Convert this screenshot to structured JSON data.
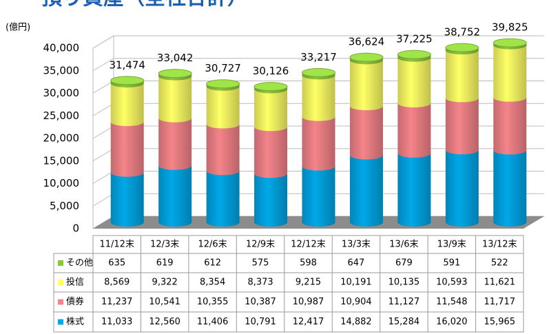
{
  "chart_data": {
    "type": "bar",
    "stacked": true,
    "title": "預り資産（全社合計）",
    "y_axis_label": "(億円)",
    "categories": [
      "11/12末",
      "12/3末",
      "12/6末",
      "12/9末",
      "12/12末",
      "13/3末",
      "13/6末",
      "13/9末",
      "13/12末"
    ],
    "series": [
      {
        "name": "株式",
        "color": "#00a8e8",
        "values": [
          11033,
          12560,
          11406,
          10791,
          12417,
          14882,
          15284,
          16020,
          15965
        ],
        "value_labels": [
          "11,033",
          "12,560",
          "11,406",
          "10,791",
          "12,417",
          "14,882",
          "15,284",
          "16,020",
          "15,965"
        ]
      },
      {
        "name": "債券",
        "color": "#f4848a",
        "values": [
          11237,
          10541,
          10355,
          10387,
          10987,
          10904,
          11127,
          11548,
          11717
        ],
        "value_labels": [
          "11,237",
          "10,541",
          "10,355",
          "10,387",
          "10,987",
          "10,904",
          "11,127",
          "11,548",
          "11,717"
        ]
      },
      {
        "name": "投信",
        "color": "#ffff66",
        "values": [
          8569,
          9322,
          8354,
          8373,
          9215,
          10191,
          10135,
          10593,
          11621
        ],
        "value_labels": [
          "8,569",
          "9,322",
          "8,354",
          "8,373",
          "9,215",
          "10,191",
          "10,135",
          "10,593",
          "11,621"
        ]
      },
      {
        "name": "その他",
        "color": "#8cc63f",
        "values": [
          635,
          619,
          612,
          575,
          598,
          647,
          679,
          591,
          522
        ],
        "value_labels": [
          "635",
          "619",
          "612",
          "575",
          "598",
          "647",
          "679",
          "591",
          "522"
        ]
      }
    ],
    "totals": [
      31474,
      33042,
      30727,
      30126,
      33217,
      36624,
      37225,
      38752,
      39825
    ],
    "total_labels": [
      "31,474",
      "33,042",
      "30,727",
      "30,126",
      "33,217",
      "36,624",
      "37,225",
      "38,752",
      "39,825"
    ],
    "ylim": [
      0,
      40000
    ],
    "yticks": [
      0,
      {
        "value": 5000,
        "label": "5,000"
      },
      {
        "value": 10000,
        "label": "10,000"
      },
      {
        "value": 15000,
        "label": "15,000"
      },
      {
        "value": 20000,
        "label": "20,000"
      },
      {
        "value": 25000,
        "label": "25,000"
      },
      {
        "value": 30000,
        "label": "30,000"
      },
      {
        "value": 35000,
        "label": "35,000"
      },
      {
        "value": 40000,
        "label": "40,000"
      }
    ],
    "grid": true
  }
}
